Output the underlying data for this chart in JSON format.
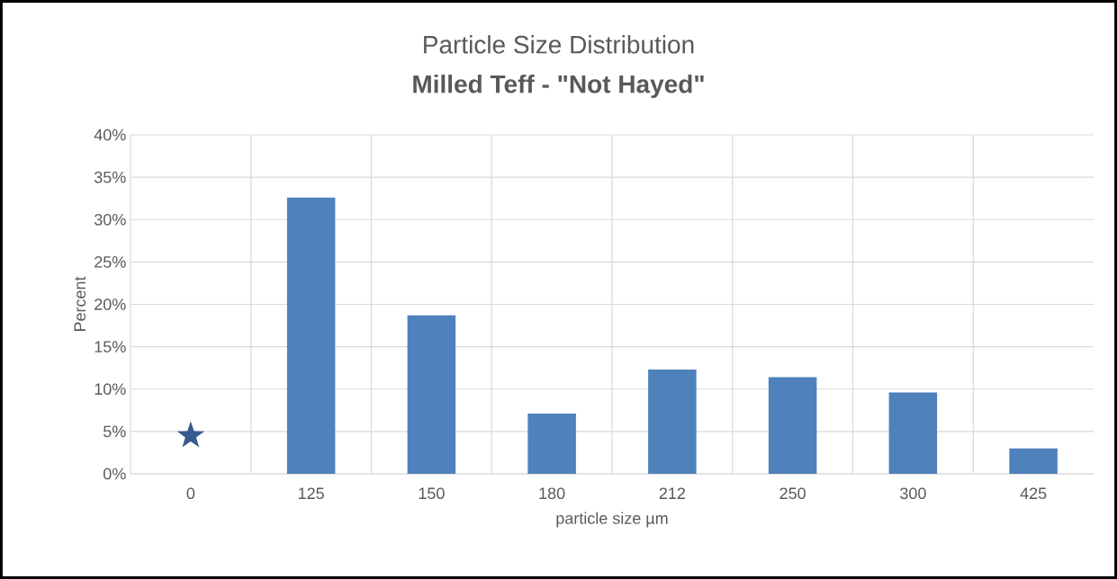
{
  "chart_data": {
    "type": "bar",
    "title": "Particle Size Distribution",
    "subtitle": "Milled Teff - \"Not Hayed\"",
    "xlabel": "particle size µm",
    "ylabel": "Percent",
    "categories": [
      "0",
      "125",
      "150",
      "180",
      "212",
      "250",
      "300",
      "425"
    ],
    "series": [
      {
        "color": "#4f81bd",
        "values": [
          null,
          32.6,
          18.7,
          7.1,
          12.3,
          11.4,
          9.6,
          3.0
        ]
      },
      {
        "type": "scatter",
        "color": "#345b8c",
        "x": [
          "0"
        ],
        "values": [
          4.5
        ],
        "marker": "star"
      }
    ],
    "ylim": [
      0,
      40
    ],
    "yticks": [
      {
        "value": 0,
        "label": "0%"
      },
      {
        "value": 5,
        "label": "5%"
      },
      {
        "value": 10,
        "label": "10%"
      },
      {
        "value": 15,
        "label": "15%"
      },
      {
        "value": 20,
        "label": "20%"
      },
      {
        "value": 25,
        "label": "25%"
      },
      {
        "value": 30,
        "label": "30%"
      },
      {
        "value": 35,
        "label": "35%"
      },
      {
        "value": 40,
        "label": "40%"
      }
    ],
    "grid": true
  }
}
